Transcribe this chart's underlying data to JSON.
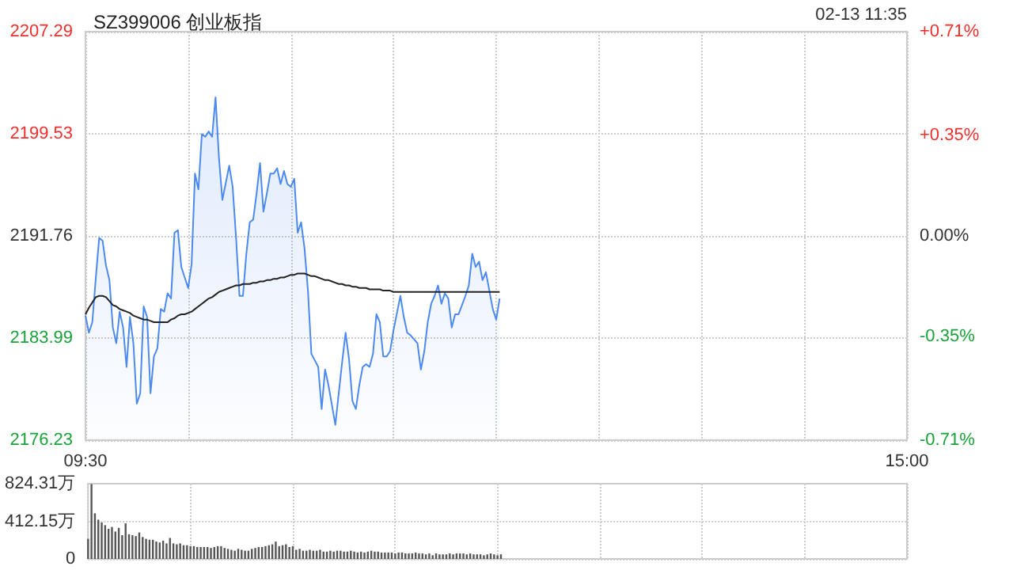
{
  "chart_data": [
    {
      "type": "line",
      "title": "SZ399006 创业板指",
      "annotations": [
        "02-13 11:35"
      ],
      "marker": "none",
      "grid": true,
      "categories": [
        "09:30",
        null,
        null,
        null,
        null,
        null,
        null,
        null,
        null,
        null,
        null,
        null,
        null,
        null,
        null,
        null,
        null,
        null,
        null,
        null,
        null,
        null,
        null,
        null,
        null,
        null,
        null,
        null,
        null,
        null,
        null,
        null,
        null,
        null,
        null,
        null,
        null,
        null,
        null,
        null,
        null,
        null,
        null,
        null,
        null,
        null,
        null,
        null,
        null,
        null,
        null,
        null,
        null,
        null,
        null,
        null,
        null,
        null,
        null,
        null,
        null,
        null,
        null,
        null,
        null,
        null,
        null,
        null,
        null,
        null,
        null,
        null,
        null,
        null,
        null,
        null,
        null,
        null,
        null,
        null,
        null,
        null,
        null,
        null,
        null,
        null,
        null,
        null,
        null,
        null,
        null,
        null,
        null,
        null,
        null,
        null,
        null,
        null,
        null,
        null,
        null,
        null,
        null,
        null,
        null,
        null,
        null,
        null,
        null,
        null,
        null,
        null,
        null,
        null,
        null,
        null,
        null,
        null,
        null,
        null,
        null,
        null,
        null,
        null,
        null,
        null,
        null,
        null,
        null,
        null,
        null,
        null,
        null,
        null,
        null,
        null,
        null,
        null,
        null,
        null,
        null,
        null,
        null,
        null,
        null,
        null,
        null,
        null,
        null,
        null,
        null,
        null,
        null,
        null,
        null,
        null,
        null,
        null,
        null,
        null,
        null,
        null,
        null,
        null,
        null,
        null,
        null,
        null,
        null,
        null,
        null,
        null,
        null,
        null,
        null,
        null,
        null,
        null,
        null,
        null,
        null,
        null,
        null,
        null,
        null,
        null,
        null,
        null,
        null,
        null,
        null,
        null,
        null,
        null,
        null,
        null,
        null,
        null,
        null,
        null,
        null,
        null,
        null,
        null,
        null,
        null,
        null,
        null,
        null,
        null,
        null,
        null,
        null,
        null,
        null,
        null,
        null,
        null,
        null,
        null,
        null,
        null,
        null,
        null,
        null,
        null,
        null,
        null,
        null,
        null,
        null,
        null,
        null,
        null,
        null,
        null,
        null,
        null,
        null,
        null,
        "15:00"
      ],
      "ylim": [
        2176.23,
        2207.29
      ],
      "yticks": [
        2176.23,
        2183.99,
        2191.76,
        2199.53,
        2207.29
      ],
      "y2lim": [
        -0.71,
        0.71
      ],
      "y2ticks": [
        {
          "value": -0.71,
          "label": "-0.71%"
        },
        {
          "value": -0.35,
          "label": "-0.35%"
        },
        {
          "value": 0,
          "label": "0.00%"
        },
        {
          "value": 0.35,
          "label": "+0.35%"
        },
        {
          "value": 0.71,
          "label": "+0.71%"
        }
      ],
      "series": [
        {
          "type": "area",
          "color": "#4d8af0",
          "values": [
            2185.7,
            2184.4,
            2185.2,
            2188.5,
            2191.6,
            2191.4,
            2189.5,
            2188.4,
            2184.8,
            2183.6,
            2186.0,
            2184.8,
            2181.8,
            2185.6,
            2183.6,
            2179.0,
            2179.8,
            2186.4,
            2185.6,
            2179.8,
            2182.6,
            2183.2,
            2186.2,
            2186.0,
            2187.4,
            2187.0,
            2192.0,
            2192.2,
            2189.4,
            2188.6,
            2187.8,
            2189.6,
            2196.5,
            2195.3,
            2199.5,
            2199.3,
            2199.7,
            2199.3,
            2202.3,
            2197.7,
            2194.5,
            2195.8,
            2197.1,
            2195.5,
            2191.6,
            2187.2,
            2187.2,
            2190.4,
            2192.8,
            2193.0,
            2195.0,
            2197.3,
            2193.6,
            2195.0,
            2196.5,
            2196.5,
            2196.9,
            2195.7,
            2196.7,
            2195.7,
            2195.5,
            2196.1,
            2192.0,
            2192.8,
            2190.8,
            2187.6,
            2182.8,
            2182.3,
            2181.8,
            2178.6,
            2181.6,
            2180.4,
            2178.9,
            2177.4,
            2179.8,
            2182.2,
            2184.4,
            2182.4,
            2179.2,
            2178.6,
            2180.4,
            2181.8,
            2182.0,
            2181.8,
            2182.8,
            2185.8,
            2185.2,
            2182.6,
            2182.6,
            2183.0,
            2184.6,
            2185.9,
            2187.2,
            2185.6,
            2184.4,
            2184.2,
            2183.9,
            2183.6,
            2181.6,
            2183.0,
            2185.2,
            2186.6,
            2187.2,
            2188.0,
            2186.6,
            2187.4,
            2187.0,
            2184.8,
            2185.8,
            2185.8,
            2186.5,
            2187.2,
            2188.0,
            2190.4,
            2189.4,
            2189.8,
            2188.4,
            2189.0,
            2187.6,
            2186.2,
            2185.4,
            2187.0,
            null,
            null,
            null,
            null,
            null,
            null,
            null,
            null,
            null,
            null,
            null,
            null,
            null,
            null,
            null,
            null,
            null,
            null,
            null,
            null,
            null,
            null,
            null,
            null,
            null,
            null,
            null,
            null,
            null,
            null,
            null,
            null,
            null,
            null,
            null,
            null,
            null,
            null,
            null,
            null,
            null,
            null,
            null,
            null,
            null,
            null,
            null,
            null,
            null,
            null,
            null,
            null,
            null,
            null,
            null,
            null,
            null,
            null,
            null,
            null,
            null,
            null,
            null,
            null,
            null,
            null,
            null,
            null,
            null,
            null,
            null,
            null,
            null,
            null,
            null,
            null,
            null,
            null,
            null,
            null,
            null,
            null,
            null,
            null,
            null,
            null,
            null,
            null,
            null,
            null,
            null,
            null,
            null,
            null,
            null,
            null,
            null,
            null,
            null,
            null,
            null,
            null,
            null,
            null,
            null,
            null,
            null,
            null,
            null,
            null,
            null,
            null,
            null,
            null,
            null,
            null,
            null,
            null,
            null
          ]
        },
        {
          "type": "line",
          "color": "#222222",
          "values": [
            2185.8,
            2186.3,
            2186.7,
            2187.1,
            2187.2,
            2187.2,
            2187.1,
            2186.8,
            2186.5,
            2186.4,
            2186.2,
            2186.1,
            2186.0,
            2185.9,
            2185.7,
            2185.6,
            2185.5,
            2185.4,
            2185.4,
            2185.3,
            2185.2,
            2185.2,
            2185.2,
            2185.2,
            2185.2,
            2185.4,
            2185.5,
            2185.7,
            2185.8,
            2185.8,
            2185.9,
            2186.0,
            2186.2,
            2186.4,
            2186.6,
            2186.8,
            2187.0,
            2187.1,
            2187.3,
            2187.5,
            2187.6,
            2187.7,
            2187.8,
            2187.9,
            2188.0,
            2188.0,
            2188.1,
            2188.1,
            2188.1,
            2188.2,
            2188.2,
            2188.3,
            2188.3,
            2188.4,
            2188.4,
            2188.5,
            2188.5,
            2188.6,
            2188.6,
            2188.7,
            2188.8,
            2188.8,
            2188.9,
            2188.9,
            2188.9,
            2188.8,
            2188.7,
            2188.7,
            2188.6,
            2188.5,
            2188.4,
            2188.4,
            2188.3,
            2188.2,
            2188.1,
            2188.1,
            2188.0,
            2188.0,
            2187.9,
            2187.9,
            2187.8,
            2187.8,
            2187.8,
            2187.7,
            2187.7,
            2187.7,
            2187.7,
            2187.6,
            2187.6,
            2187.6,
            2187.5,
            2187.5,
            2187.5,
            2187.5,
            2187.5,
            2187.5,
            2187.5,
            2187.5,
            2187.5,
            2187.5,
            2187.5,
            2187.5,
            2187.5,
            2187.5,
            2187.5,
            2187.5,
            2187.5,
            2187.5,
            2187.5,
            2187.5,
            2187.5,
            2187.5,
            2187.5,
            2187.5,
            2187.5,
            2187.5,
            2187.5,
            2187.5,
            2187.5,
            2187.5,
            2187.5,
            2187.5,
            null,
            null,
            null,
            null,
            null,
            null,
            null,
            null,
            null,
            null,
            null,
            null,
            null,
            null,
            null,
            null,
            null,
            null,
            null,
            null,
            null,
            null,
            null,
            null,
            null,
            null,
            null,
            null,
            null,
            null,
            null,
            null,
            null,
            null,
            null,
            null,
            null,
            null,
            null,
            null,
            null,
            null,
            null,
            null,
            null,
            null,
            null,
            null,
            null,
            null,
            null,
            null,
            null,
            null,
            null,
            null,
            null,
            null,
            null,
            null,
            null,
            null,
            null,
            null,
            null,
            null,
            null,
            null,
            null,
            null,
            null,
            null,
            null,
            null,
            null,
            null,
            null,
            null,
            null,
            null,
            null,
            null,
            null,
            null,
            null,
            null,
            null,
            null,
            null,
            null,
            null,
            null,
            null,
            null,
            null,
            null,
            null,
            null,
            null,
            null,
            null,
            null,
            null,
            null,
            null,
            null,
            null,
            null,
            null,
            null,
            null,
            null,
            null,
            null,
            null,
            null,
            null,
            null,
            null
          ]
        }
      ]
    },
    {
      "type": "bar",
      "color": "#555555",
      "grid": true,
      "tick_labels": "y",
      "categories": [
        null,
        null,
        null,
        null,
        null,
        null,
        null,
        null,
        null,
        null,
        null,
        null,
        null,
        null,
        null,
        null,
        null,
        null,
        null,
        null,
        null,
        null,
        null,
        null,
        null,
        null,
        null,
        null,
        null,
        null,
        null,
        null,
        null,
        null,
        null,
        null,
        null,
        null,
        null,
        null,
        null,
        null,
        null,
        null,
        null,
        null,
        null,
        null,
        null,
        null,
        null,
        null,
        null,
        null,
        null,
        null,
        null,
        null,
        null,
        null,
        null,
        null,
        null,
        null,
        null,
        null,
        null,
        null,
        null,
        null,
        null,
        null,
        null,
        null,
        null,
        null,
        null,
        null,
        null,
        null,
        null,
        null,
        null,
        null,
        null,
        null,
        null,
        null,
        null,
        null,
        null,
        null,
        null,
        null,
        null,
        null,
        null,
        null,
        null,
        null,
        null,
        null,
        null,
        null,
        null,
        null,
        null,
        null,
        null,
        null,
        null,
        null,
        null,
        null,
        null,
        null,
        null,
        null,
        null,
        null,
        null,
        null,
        null,
        null,
        null,
        null,
        null,
        null,
        null,
        null,
        null,
        null,
        null,
        null,
        null,
        null,
        null,
        null,
        null,
        null,
        null,
        null,
        null,
        null,
        null,
        null,
        null,
        null,
        null,
        null,
        null,
        null,
        null,
        null,
        null,
        null,
        null,
        null,
        null,
        null,
        null,
        null,
        null,
        null,
        null,
        null,
        null,
        null,
        null,
        null,
        null,
        null,
        null,
        null,
        null,
        null,
        null,
        null,
        null,
        null,
        null,
        null,
        null,
        null,
        null,
        null,
        null,
        null,
        null,
        null,
        null,
        null,
        null,
        null,
        null,
        null,
        null,
        null,
        null,
        null,
        null,
        null,
        null,
        null,
        null,
        null,
        null,
        null,
        null,
        null,
        null,
        null,
        null,
        null,
        null,
        null,
        null,
        null,
        null,
        null,
        null,
        null,
        null,
        null,
        null,
        null,
        null,
        null,
        null,
        null,
        null,
        null,
        null,
        null,
        null,
        null,
        null,
        null,
        null,
        null,
        null
      ],
      "ylim": [
        0,
        824.31
      ],
      "yticks": [
        0,
        {
          "value": 412.15,
          "label": "412.15万"
        },
        {
          "value": 824.31,
          "label": "824.31万"
        }
      ],
      "values": [
        220,
        820,
        500,
        430,
        400,
        370,
        330,
        350,
        300,
        340,
        260,
        390,
        270,
        260,
        250,
        290,
        240,
        220,
        210,
        210,
        190,
        180,
        200,
        170,
        230,
        170,
        160,
        170,
        150,
        150,
        140,
        140,
        130,
        130,
        130,
        130,
        120,
        130,
        140,
        140,
        120,
        110,
        100,
        90,
        110,
        100,
        90,
        90,
        110,
        120,
        130,
        130,
        140,
        150,
        160,
        190,
        140,
        150,
        160,
        130,
        140,
        100,
        110,
        90,
        90,
        100,
        90,
        90,
        100,
        80,
        80,
        90,
        80,
        90,
        90,
        80,
        80,
        90,
        80,
        70,
        80,
        70,
        80,
        90,
        80,
        80,
        70,
        70,
        70,
        70,
        60,
        70,
        70,
        60,
        60,
        60,
        70,
        60,
        60,
        50,
        60,
        40,
        60,
        50,
        50,
        50,
        60,
        50,
        60,
        60,
        60,
        50,
        60,
        50,
        50,
        50,
        40,
        50,
        60,
        50,
        40,
        50,
        null,
        null,
        null,
        null,
        null,
        null,
        null,
        null,
        null,
        null,
        null,
        null,
        null,
        null,
        null,
        null,
        null,
        null,
        null,
        null,
        null,
        null,
        null,
        null,
        null,
        null,
        null,
        null,
        null,
        null,
        null,
        null,
        null,
        null,
        null,
        null,
        null,
        null,
        null,
        null,
        null,
        null,
        null,
        null,
        null,
        null,
        null,
        null,
        null,
        null,
        null,
        null,
        null,
        null,
        null,
        null,
        null,
        null,
        null,
        null,
        null,
        null,
        null,
        null,
        null,
        null,
        null,
        null,
        null,
        null,
        null,
        null,
        null,
        null,
        null,
        null,
        null,
        null,
        null,
        null,
        null,
        null,
        null,
        null,
        null,
        null,
        null,
        null,
        null,
        null,
        null,
        null,
        null,
        null,
        null,
        null,
        null,
        null,
        null,
        null,
        null,
        null,
        null,
        null,
        null,
        null,
        null,
        null,
        null,
        null,
        null,
        null,
        null,
        null,
        null,
        null,
        null,
        null,
        null
      ]
    }
  ]
}
